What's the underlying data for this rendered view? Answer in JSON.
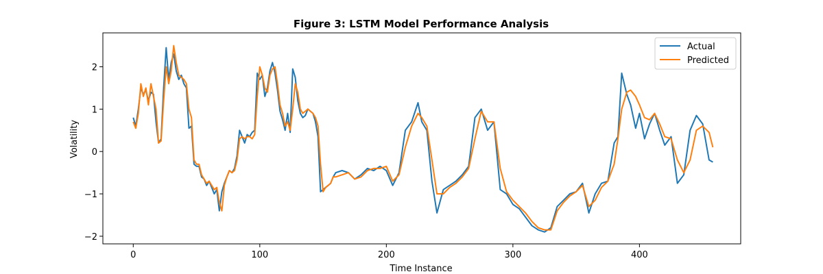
{
  "chart_data": {
    "type": "line",
    "title": "Figure 3: LSTM Model Performance Analysis",
    "xlabel": "Time Instance",
    "ylabel": "Volatility",
    "xlim": [
      -24,
      480
    ],
    "ylim": [
      -2.18,
      2.8
    ],
    "xticks": [
      0,
      100,
      200,
      300,
      400
    ],
    "yticks": [
      -2,
      -1,
      0,
      1,
      2
    ],
    "xtick_labels": [
      "0",
      "100",
      "200",
      "300",
      "400"
    ],
    "ytick_labels": [
      "−2",
      "−1",
      "0",
      "1",
      "2"
    ],
    "grid": false,
    "legend": "top-right",
    "series": [
      {
        "name": "Actual",
        "color": "#1f77b4",
        "x": [
          0,
          2,
          4,
          6,
          8,
          10,
          12,
          14,
          16,
          18,
          20,
          22,
          24,
          26,
          28,
          30,
          32,
          34,
          36,
          38,
          40,
          42,
          44,
          46,
          48,
          50,
          52,
          54,
          56,
          58,
          60,
          62,
          64,
          66,
          68,
          70,
          72,
          74,
          76,
          78,
          80,
          82,
          84,
          86,
          88,
          90,
          92,
          94,
          96,
          98,
          100,
          102,
          104,
          106,
          108,
          110,
          112,
          114,
          116,
          118,
          120,
          122,
          124,
          126,
          128,
          130,
          132,
          134,
          136,
          138,
          140,
          142,
          144,
          146,
          148,
          150,
          152,
          154,
          156,
          158,
          160,
          165,
          170,
          175,
          180,
          185,
          190,
          195,
          200,
          205,
          210,
          215,
          220,
          225,
          228,
          232,
          236,
          240,
          245,
          250,
          255,
          260,
          265,
          270,
          275,
          280,
          285,
          290,
          295,
          300,
          305,
          310,
          315,
          320,
          325,
          330,
          335,
          340,
          345,
          350,
          355,
          360,
          365,
          370,
          375,
          380,
          383,
          386,
          390,
          393,
          397,
          400,
          404,
          408,
          412,
          416,
          420,
          425,
          430,
          435,
          440,
          445,
          450,
          455,
          458
        ],
        "y": [
          0.8,
          0.6,
          1.0,
          1.5,
          1.35,
          1.45,
          1.2,
          1.4,
          1.35,
          0.7,
          0.2,
          0.3,
          1.5,
          2.45,
          1.7,
          2.1,
          2.3,
          1.9,
          1.7,
          1.8,
          1.6,
          1.5,
          0.55,
          0.6,
          -0.3,
          -0.35,
          -0.35,
          -0.6,
          -0.65,
          -0.8,
          -0.7,
          -0.85,
          -1.0,
          -0.9,
          -1.4,
          -0.95,
          -0.75,
          -0.6,
          -0.45,
          -0.5,
          -0.4,
          -0.1,
          0.5,
          0.35,
          0.2,
          0.4,
          0.35,
          0.45,
          0.5,
          1.85,
          1.7,
          1.8,
          1.3,
          1.5,
          1.9,
          2.1,
          1.85,
          1.45,
          0.95,
          0.75,
          0.5,
          0.9,
          0.45,
          1.95,
          1.75,
          1.2,
          0.9,
          0.8,
          0.85,
          1.0,
          0.95,
          0.9,
          0.7,
          0.35,
          -0.95,
          -0.9,
          -0.85,
          -0.8,
          -0.75,
          -0.6,
          -0.5,
          -0.45,
          -0.5,
          -0.65,
          -0.55,
          -0.4,
          -0.45,
          -0.35,
          -0.45,
          -0.8,
          -0.5,
          0.5,
          0.7,
          1.15,
          0.7,
          0.5,
          -0.7,
          -1.45,
          -0.9,
          -0.8,
          -0.7,
          -0.55,
          -0.35,
          0.8,
          1.0,
          0.5,
          0.7,
          -0.9,
          -1.0,
          -1.25,
          -1.35,
          -1.55,
          -1.75,
          -1.85,
          -1.9,
          -1.8,
          -1.3,
          -1.15,
          -1.0,
          -0.95,
          -0.75,
          -1.45,
          -1.0,
          -0.75,
          -0.7,
          0.2,
          0.35,
          1.85,
          1.35,
          1.1,
          0.55,
          0.9,
          0.3,
          0.65,
          0.9,
          0.5,
          0.15,
          0.35,
          -0.75,
          -0.55,
          0.5,
          0.85,
          0.65,
          -0.2,
          -0.25
        ]
      },
      {
        "name": "Predicted",
        "color": "#ff7f0e",
        "x": [
          0,
          2,
          4,
          6,
          8,
          10,
          12,
          14,
          16,
          18,
          20,
          22,
          24,
          26,
          28,
          30,
          32,
          34,
          36,
          38,
          40,
          42,
          44,
          46,
          48,
          50,
          52,
          54,
          56,
          58,
          60,
          62,
          64,
          66,
          68,
          70,
          72,
          74,
          76,
          78,
          80,
          82,
          84,
          86,
          88,
          90,
          92,
          94,
          96,
          98,
          100,
          102,
          104,
          106,
          108,
          110,
          112,
          114,
          116,
          118,
          120,
          122,
          124,
          126,
          128,
          130,
          132,
          134,
          136,
          138,
          140,
          142,
          144,
          146,
          148,
          150,
          152,
          154,
          156,
          158,
          160,
          165,
          170,
          175,
          180,
          185,
          190,
          195,
          200,
          205,
          210,
          215,
          220,
          225,
          228,
          232,
          236,
          240,
          245,
          250,
          255,
          260,
          265,
          270,
          275,
          280,
          285,
          290,
          295,
          300,
          305,
          310,
          315,
          320,
          325,
          330,
          335,
          340,
          345,
          350,
          355,
          360,
          365,
          370,
          375,
          380,
          383,
          386,
          390,
          393,
          397,
          400,
          404,
          408,
          412,
          416,
          420,
          425,
          430,
          435,
          440,
          445,
          450,
          455,
          458
        ],
        "y": [
          0.7,
          0.55,
          0.9,
          1.6,
          1.3,
          1.5,
          1.1,
          1.6,
          1.3,
          1.0,
          0.2,
          0.25,
          1.2,
          2.0,
          1.6,
          1.9,
          2.5,
          2.1,
          1.8,
          1.75,
          1.7,
          1.6,
          1.0,
          0.8,
          -0.2,
          -0.3,
          -0.3,
          -0.55,
          -0.65,
          -0.75,
          -0.7,
          -0.8,
          -0.9,
          -0.85,
          -1.2,
          -1.4,
          -0.8,
          -0.6,
          -0.45,
          -0.5,
          -0.45,
          -0.2,
          0.3,
          0.35,
          0.3,
          0.35,
          0.35,
          0.3,
          0.4,
          1.3,
          2.0,
          1.8,
          1.5,
          1.4,
          1.8,
          1.95,
          2.0,
          1.6,
          1.1,
          0.9,
          0.6,
          0.7,
          0.5,
          1.0,
          1.6,
          1.4,
          1.0,
          0.9,
          0.95,
          1.0,
          0.95,
          0.9,
          0.8,
          0.6,
          -0.3,
          -0.95,
          -0.85,
          -0.8,
          -0.75,
          -0.6,
          -0.6,
          -0.55,
          -0.5,
          -0.65,
          -0.6,
          -0.45,
          -0.4,
          -0.4,
          -0.35,
          -0.7,
          -0.55,
          0.1,
          0.6,
          0.9,
          0.8,
          0.6,
          -0.2,
          -1.0,
          -1.0,
          -0.85,
          -0.75,
          -0.6,
          -0.4,
          0.3,
          0.95,
          0.7,
          0.7,
          -0.4,
          -0.95,
          -1.15,
          -1.3,
          -1.45,
          -1.65,
          -1.8,
          -1.85,
          -1.85,
          -1.4,
          -1.2,
          -1.05,
          -0.95,
          -0.8,
          -1.3,
          -1.15,
          -0.85,
          -0.7,
          -0.3,
          0.3,
          1.0,
          1.4,
          1.45,
          1.3,
          1.1,
          0.8,
          0.75,
          0.9,
          0.65,
          0.35,
          0.3,
          -0.2,
          -0.5,
          -0.2,
          0.5,
          0.6,
          0.45,
          0.1
        ]
      }
    ]
  }
}
